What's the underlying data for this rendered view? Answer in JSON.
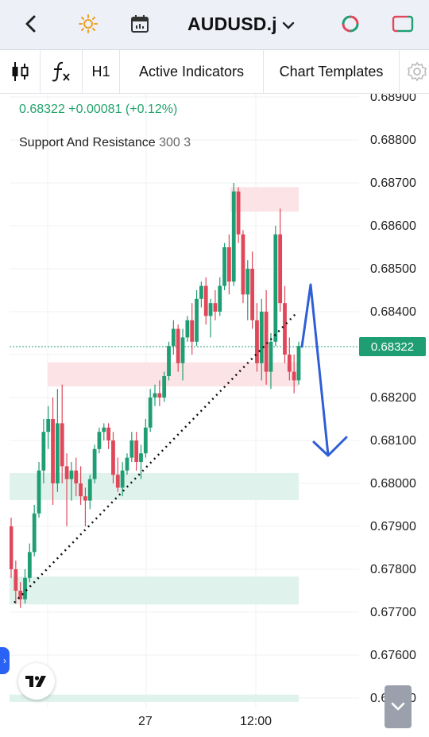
{
  "topbar": {
    "back_icon": "chevron-left-icon",
    "theme_icon": "sun-icon",
    "calendar_icon": "calendar-icon",
    "symbol": "AUDUSD.j",
    "symbol_dropdown_icon": "chevron-down-icon",
    "refresh_icon": "sync-icon",
    "layout_icon": "rectangle-icon"
  },
  "toolbar": {
    "chart_type_icon": "candlestick-icon",
    "indicator_icon": "fx-icon",
    "interval": "H1",
    "active_indicators": "Active Indicators",
    "chart_templates": "Chart Templates",
    "settings_icon": "gear-icon"
  },
  "header": {
    "price_change": "0.68322 +0.00081 (+0.12%)",
    "indicator_name": "Support And Resistance",
    "indicator_params": "300 3"
  },
  "price_badge": "0.68322",
  "colors": {
    "up": "#1f9e74",
    "down": "#e0485a",
    "resistance_zone": "#fbe3e6",
    "support_zone": "#dff2ec",
    "arrow": "#2f5fd6"
  },
  "chart_data": {
    "type": "candlestick",
    "symbol": "AUDUSD.j",
    "interval": "H1",
    "last_price": 0.68322,
    "y_ticks": [
      "0.68900",
      "0.68800",
      "0.68700",
      "0.68600",
      "0.68500",
      "0.68400",
      "0.68300",
      "0.68200",
      "0.68100",
      "0.68000",
      "0.67900",
      "0.67800",
      "0.67700",
      "0.67600",
      "0.67500"
    ],
    "x_ticks": [
      "27",
      "12:00"
    ],
    "ylim": [
      0.675,
      0.6892
    ],
    "candles": [
      [
        0.679,
        0.6792,
        0.6778,
        0.678
      ],
      [
        0.678,
        0.6782,
        0.6772,
        0.6775
      ],
      [
        0.6775,
        0.6777,
        0.6771,
        0.6773
      ],
      [
        0.6773,
        0.678,
        0.6772,
        0.6778
      ],
      [
        0.6778,
        0.6786,
        0.6777,
        0.6784
      ],
      [
        0.6784,
        0.6795,
        0.6783,
        0.6793
      ],
      [
        0.6793,
        0.6805,
        0.6792,
        0.6803
      ],
      [
        0.6803,
        0.6815,
        0.68,
        0.6812
      ],
      [
        0.6812,
        0.6818,
        0.6808,
        0.6815
      ],
      [
        0.6815,
        0.682,
        0.6795,
        0.68
      ],
      [
        0.68,
        0.6822,
        0.6798,
        0.6814
      ],
      [
        0.6814,
        0.6823,
        0.68,
        0.6804
      ],
      [
        0.6804,
        0.6807,
        0.679,
        0.6801
      ],
      [
        0.6801,
        0.6805,
        0.6796,
        0.6803
      ],
      [
        0.6803,
        0.6806,
        0.6797,
        0.68
      ],
      [
        0.68,
        0.6804,
        0.6795,
        0.6797
      ],
      [
        0.6797,
        0.6799,
        0.679,
        0.6796
      ],
      [
        0.6796,
        0.6802,
        0.6794,
        0.6801
      ],
      [
        0.6801,
        0.6809,
        0.68,
        0.6808
      ],
      [
        0.6808,
        0.6813,
        0.6807,
        0.6812
      ],
      [
        0.6812,
        0.6814,
        0.681,
        0.6813
      ],
      [
        0.6813,
        0.6814,
        0.6808,
        0.681
      ],
      [
        0.681,
        0.6812,
        0.68,
        0.6802
      ],
      [
        0.6802,
        0.6806,
        0.6798,
        0.6799
      ],
      [
        0.6799,
        0.6805,
        0.6797,
        0.6803
      ],
      [
        0.6803,
        0.6807,
        0.6802,
        0.6806
      ],
      [
        0.6806,
        0.6812,
        0.6805,
        0.681
      ],
      [
        0.681,
        0.6812,
        0.6803,
        0.6805
      ],
      [
        0.6805,
        0.6809,
        0.6801,
        0.6807
      ],
      [
        0.6807,
        0.6815,
        0.6806,
        0.6813
      ],
      [
        0.6813,
        0.6822,
        0.6812,
        0.682
      ],
      [
        0.682,
        0.6823,
        0.6818,
        0.6821
      ],
      [
        0.6821,
        0.6824,
        0.6818,
        0.682
      ],
      [
        0.682,
        0.6826,
        0.6819,
        0.6825
      ],
      [
        0.6825,
        0.6833,
        0.6824,
        0.6832
      ],
      [
        0.6832,
        0.6838,
        0.683,
        0.6836
      ],
      [
        0.6836,
        0.6837,
        0.6826,
        0.6828
      ],
      [
        0.6828,
        0.6836,
        0.6824,
        0.6834
      ],
      [
        0.6834,
        0.6839,
        0.6833,
        0.6838
      ],
      [
        0.6838,
        0.6842,
        0.683,
        0.6833
      ],
      [
        0.6833,
        0.6845,
        0.6832,
        0.6843
      ],
      [
        0.6843,
        0.6847,
        0.6841,
        0.6846
      ],
      [
        0.6846,
        0.6848,
        0.6837,
        0.6839
      ],
      [
        0.6839,
        0.6843,
        0.6834,
        0.6842
      ],
      [
        0.6842,
        0.6845,
        0.6838,
        0.684
      ],
      [
        0.684,
        0.6848,
        0.6839,
        0.6846
      ],
      [
        0.6846,
        0.6856,
        0.6845,
        0.6855
      ],
      [
        0.6855,
        0.6858,
        0.6844,
        0.6847
      ],
      [
        0.6847,
        0.687,
        0.6846,
        0.6868
      ],
      [
        0.6868,
        0.6869,
        0.6856,
        0.6858
      ],
      [
        0.6858,
        0.6859,
        0.6842,
        0.6844
      ],
      [
        0.6844,
        0.6852,
        0.6838,
        0.685
      ],
      [
        0.685,
        0.6854,
        0.6836,
        0.6838
      ],
      [
        0.6838,
        0.6842,
        0.6826,
        0.6828
      ],
      [
        0.6828,
        0.6843,
        0.6824,
        0.684
      ],
      [
        0.684,
        0.6845,
        0.6823,
        0.6826
      ],
      [
        0.6826,
        0.6835,
        0.6822,
        0.6833
      ],
      [
        0.6833,
        0.686,
        0.6832,
        0.6858
      ],
      [
        0.6858,
        0.6864,
        0.684,
        0.6842
      ],
      [
        0.6842,
        0.6846,
        0.6828,
        0.683
      ],
      [
        0.683,
        0.6834,
        0.6824,
        0.6826
      ],
      [
        0.6826,
        0.683,
        0.6821,
        0.6824
      ],
      [
        0.6824,
        0.6833,
        0.6823,
        0.6832
      ]
    ]
  }
}
